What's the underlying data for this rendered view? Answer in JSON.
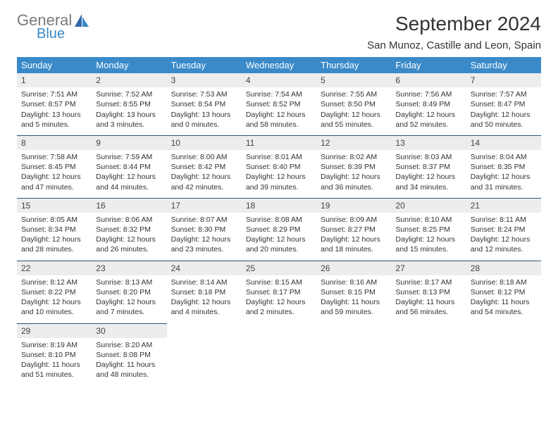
{
  "logo": {
    "text1": "General",
    "text2": "Blue"
  },
  "title": "September 2024",
  "location": "San Munoz, Castille and Leon, Spain",
  "weekdays": [
    "Sunday",
    "Monday",
    "Tuesday",
    "Wednesday",
    "Thursday",
    "Friday",
    "Saturday"
  ],
  "colors": {
    "header_bg": "#3a8ac9",
    "header_text": "#ffffff",
    "daynum_bg": "#eceded",
    "row_divider": "#2f5675",
    "body_text": "#333333",
    "logo_gray": "#7a7a7a",
    "logo_blue": "#3a8ac9"
  },
  "fonts": {
    "title_size": 28,
    "location_size": 15,
    "weekday_size": 13,
    "cell_size": 10.5
  },
  "weeks": [
    [
      {
        "day": "1",
        "sunrise": "Sunrise: 7:51 AM",
        "sunset": "Sunset: 8:57 PM",
        "daylight1": "Daylight: 13 hours",
        "daylight2": "and 5 minutes."
      },
      {
        "day": "2",
        "sunrise": "Sunrise: 7:52 AM",
        "sunset": "Sunset: 8:55 PM",
        "daylight1": "Daylight: 13 hours",
        "daylight2": "and 3 minutes."
      },
      {
        "day": "3",
        "sunrise": "Sunrise: 7:53 AM",
        "sunset": "Sunset: 8:54 PM",
        "daylight1": "Daylight: 13 hours",
        "daylight2": "and 0 minutes."
      },
      {
        "day": "4",
        "sunrise": "Sunrise: 7:54 AM",
        "sunset": "Sunset: 8:52 PM",
        "daylight1": "Daylight: 12 hours",
        "daylight2": "and 58 minutes."
      },
      {
        "day": "5",
        "sunrise": "Sunrise: 7:55 AM",
        "sunset": "Sunset: 8:50 PM",
        "daylight1": "Daylight: 12 hours",
        "daylight2": "and 55 minutes."
      },
      {
        "day": "6",
        "sunrise": "Sunrise: 7:56 AM",
        "sunset": "Sunset: 8:49 PM",
        "daylight1": "Daylight: 12 hours",
        "daylight2": "and 52 minutes."
      },
      {
        "day": "7",
        "sunrise": "Sunrise: 7:57 AM",
        "sunset": "Sunset: 8:47 PM",
        "daylight1": "Daylight: 12 hours",
        "daylight2": "and 50 minutes."
      }
    ],
    [
      {
        "day": "8",
        "sunrise": "Sunrise: 7:58 AM",
        "sunset": "Sunset: 8:45 PM",
        "daylight1": "Daylight: 12 hours",
        "daylight2": "and 47 minutes."
      },
      {
        "day": "9",
        "sunrise": "Sunrise: 7:59 AM",
        "sunset": "Sunset: 8:44 PM",
        "daylight1": "Daylight: 12 hours",
        "daylight2": "and 44 minutes."
      },
      {
        "day": "10",
        "sunrise": "Sunrise: 8:00 AM",
        "sunset": "Sunset: 8:42 PM",
        "daylight1": "Daylight: 12 hours",
        "daylight2": "and 42 minutes."
      },
      {
        "day": "11",
        "sunrise": "Sunrise: 8:01 AM",
        "sunset": "Sunset: 8:40 PM",
        "daylight1": "Daylight: 12 hours",
        "daylight2": "and 39 minutes."
      },
      {
        "day": "12",
        "sunrise": "Sunrise: 8:02 AM",
        "sunset": "Sunset: 8:39 PM",
        "daylight1": "Daylight: 12 hours",
        "daylight2": "and 36 minutes."
      },
      {
        "day": "13",
        "sunrise": "Sunrise: 8:03 AM",
        "sunset": "Sunset: 8:37 PM",
        "daylight1": "Daylight: 12 hours",
        "daylight2": "and 34 minutes."
      },
      {
        "day": "14",
        "sunrise": "Sunrise: 8:04 AM",
        "sunset": "Sunset: 8:35 PM",
        "daylight1": "Daylight: 12 hours",
        "daylight2": "and 31 minutes."
      }
    ],
    [
      {
        "day": "15",
        "sunrise": "Sunrise: 8:05 AM",
        "sunset": "Sunset: 8:34 PM",
        "daylight1": "Daylight: 12 hours",
        "daylight2": "and 28 minutes."
      },
      {
        "day": "16",
        "sunrise": "Sunrise: 8:06 AM",
        "sunset": "Sunset: 8:32 PM",
        "daylight1": "Daylight: 12 hours",
        "daylight2": "and 26 minutes."
      },
      {
        "day": "17",
        "sunrise": "Sunrise: 8:07 AM",
        "sunset": "Sunset: 8:30 PM",
        "daylight1": "Daylight: 12 hours",
        "daylight2": "and 23 minutes."
      },
      {
        "day": "18",
        "sunrise": "Sunrise: 8:08 AM",
        "sunset": "Sunset: 8:29 PM",
        "daylight1": "Daylight: 12 hours",
        "daylight2": "and 20 minutes."
      },
      {
        "day": "19",
        "sunrise": "Sunrise: 8:09 AM",
        "sunset": "Sunset: 8:27 PM",
        "daylight1": "Daylight: 12 hours",
        "daylight2": "and 18 minutes."
      },
      {
        "day": "20",
        "sunrise": "Sunrise: 8:10 AM",
        "sunset": "Sunset: 8:25 PM",
        "daylight1": "Daylight: 12 hours",
        "daylight2": "and 15 minutes."
      },
      {
        "day": "21",
        "sunrise": "Sunrise: 8:11 AM",
        "sunset": "Sunset: 8:24 PM",
        "daylight1": "Daylight: 12 hours",
        "daylight2": "and 12 minutes."
      }
    ],
    [
      {
        "day": "22",
        "sunrise": "Sunrise: 8:12 AM",
        "sunset": "Sunset: 8:22 PM",
        "daylight1": "Daylight: 12 hours",
        "daylight2": "and 10 minutes."
      },
      {
        "day": "23",
        "sunrise": "Sunrise: 8:13 AM",
        "sunset": "Sunset: 8:20 PM",
        "daylight1": "Daylight: 12 hours",
        "daylight2": "and 7 minutes."
      },
      {
        "day": "24",
        "sunrise": "Sunrise: 8:14 AM",
        "sunset": "Sunset: 8:18 PM",
        "daylight1": "Daylight: 12 hours",
        "daylight2": "and 4 minutes."
      },
      {
        "day": "25",
        "sunrise": "Sunrise: 8:15 AM",
        "sunset": "Sunset: 8:17 PM",
        "daylight1": "Daylight: 12 hours",
        "daylight2": "and 2 minutes."
      },
      {
        "day": "26",
        "sunrise": "Sunrise: 8:16 AM",
        "sunset": "Sunset: 8:15 PM",
        "daylight1": "Daylight: 11 hours",
        "daylight2": "and 59 minutes."
      },
      {
        "day": "27",
        "sunrise": "Sunrise: 8:17 AM",
        "sunset": "Sunset: 8:13 PM",
        "daylight1": "Daylight: 11 hours",
        "daylight2": "and 56 minutes."
      },
      {
        "day": "28",
        "sunrise": "Sunrise: 8:18 AM",
        "sunset": "Sunset: 8:12 PM",
        "daylight1": "Daylight: 11 hours",
        "daylight2": "and 54 minutes."
      }
    ],
    [
      {
        "day": "29",
        "sunrise": "Sunrise: 8:19 AM",
        "sunset": "Sunset: 8:10 PM",
        "daylight1": "Daylight: 11 hours",
        "daylight2": "and 51 minutes."
      },
      {
        "day": "30",
        "sunrise": "Sunrise: 8:20 AM",
        "sunset": "Sunset: 8:08 PM",
        "daylight1": "Daylight: 11 hours",
        "daylight2": "and 48 minutes."
      },
      null,
      null,
      null,
      null,
      null
    ]
  ]
}
